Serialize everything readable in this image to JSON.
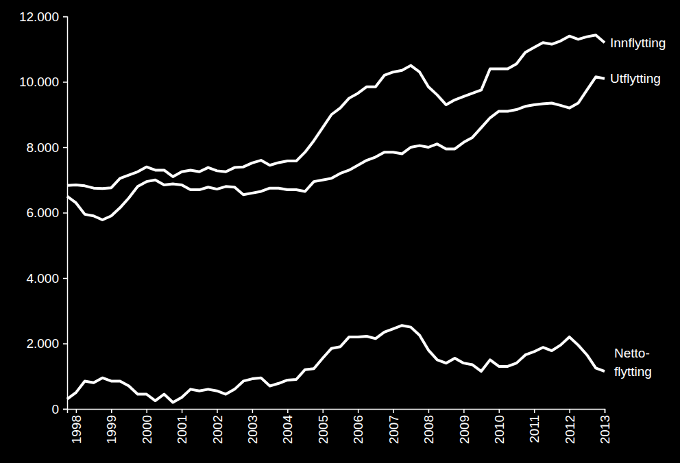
{
  "chart_data": {
    "type": "line",
    "categories": [
      null,
      "1998",
      null,
      null,
      null,
      "1999",
      null,
      null,
      null,
      "2000",
      null,
      null,
      null,
      "2001",
      null,
      null,
      null,
      "2002",
      null,
      null,
      null,
      "2003",
      null,
      null,
      null,
      "2004",
      null,
      null,
      null,
      "2005",
      null,
      null,
      null,
      "2006",
      null,
      null,
      null,
      "2007",
      null,
      null,
      null,
      "2008",
      null,
      null,
      null,
      "2009",
      null,
      null,
      null,
      "2010",
      null,
      null,
      null,
      "2011",
      null,
      null,
      null,
      "2012",
      null,
      null,
      null,
      "2013"
    ],
    "series": [
      {
        "name": "Innflytting",
        "color": "#ffffff",
        "values": [
          6830,
          6850,
          6820,
          6750,
          6740,
          6760,
          7050,
          7150,
          7250,
          7400,
          7300,
          7300,
          7100,
          7250,
          7300,
          7250,
          7380,
          7280,
          7250,
          7380,
          7400,
          7520,
          7600,
          7450,
          7530,
          7580,
          7580,
          7850,
          8200,
          8600,
          9000,
          9200,
          9500,
          9650,
          9850,
          9850,
          10200,
          10300,
          10350,
          10500,
          10300,
          9850,
          9600,
          9300,
          9450,
          9550,
          9650,
          9750,
          10400,
          10400,
          10400,
          10550,
          10900,
          11050,
          11200,
          11150,
          11250,
          11400,
          11300,
          11380,
          11430,
          11200
        ]
      },
      {
        "name": "Utflytting",
        "color": "#ffffff",
        "values": [
          6500,
          6300,
          5950,
          5900,
          5780,
          5900,
          6150,
          6450,
          6800,
          6950,
          7000,
          6850,
          6880,
          6850,
          6700,
          6700,
          6780,
          6720,
          6800,
          6780,
          6550,
          6600,
          6650,
          6750,
          6750,
          6700,
          6700,
          6650,
          6950,
          7000,
          7050,
          7200,
          7300,
          7450,
          7600,
          7700,
          7850,
          7850,
          7800,
          8000,
          8050,
          8000,
          8100,
          7950,
          7950,
          8150,
          8300,
          8600,
          8900,
          9100,
          9100,
          9150,
          9250,
          9300,
          9330,
          9350,
          9280,
          9200,
          9350,
          9750,
          10150,
          10100
        ]
      },
      {
        "name": "Netto-flytting",
        "color": "#ffffff",
        "values": [
          300,
          500,
          850,
          800,
          950,
          850,
          850,
          700,
          450,
          450,
          250,
          450,
          200,
          350,
          600,
          550,
          600,
          550,
          450,
          600,
          850,
          920,
          950,
          700,
          780,
          880,
          900,
          1200,
          1230,
          1550,
          1850,
          1900,
          2200,
          2200,
          2220,
          2150,
          2350,
          2450,
          2550,
          2500,
          2250,
          1800,
          1500,
          1400,
          1550,
          1400,
          1350,
          1150,
          1500,
          1300,
          1300,
          1400,
          1650,
          1750,
          1880,
          1780,
          1950,
          2200,
          1950,
          1650,
          1250,
          1150
        ]
      }
    ],
    "ylim": [
      0,
      12000
    ],
    "yticks": [
      0,
      {
        "value": 2000,
        "label": "2.000"
      },
      {
        "value": 4000,
        "label": "4.000"
      },
      {
        "value": 6000,
        "label": "6.000"
      },
      {
        "value": 8000,
        "label": "8.000"
      },
      {
        "value": 10000,
        "label": "10.000"
      },
      {
        "value": 12000,
        "label": "12.000"
      }
    ],
    "grid": false
  }
}
